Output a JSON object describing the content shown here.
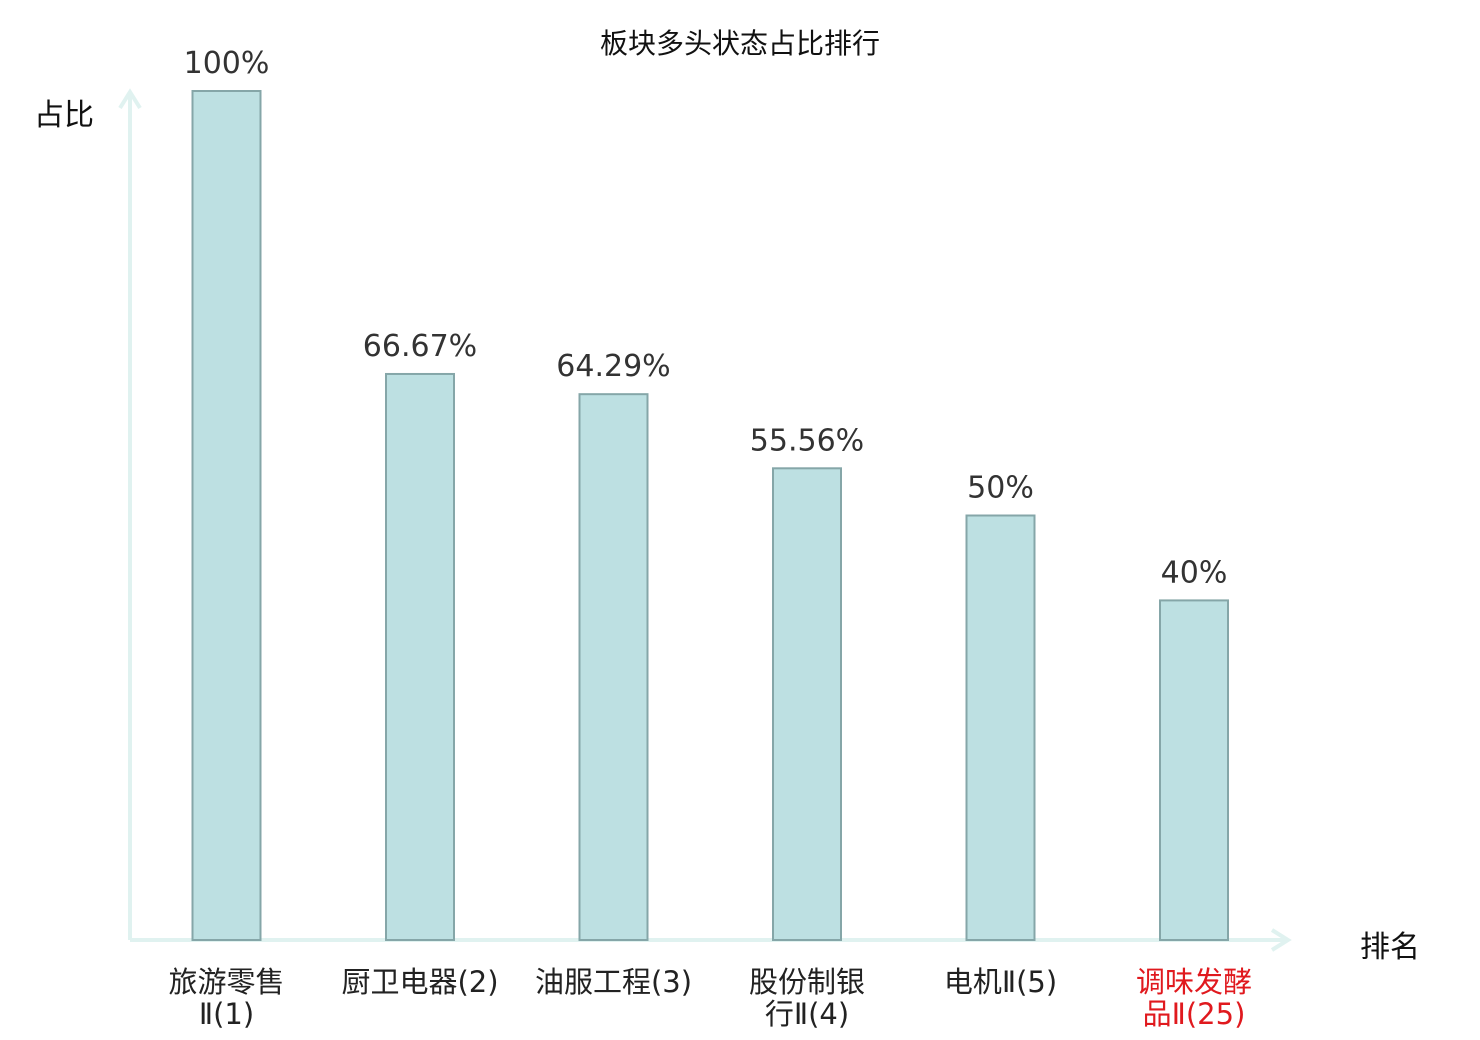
{
  "chart_data": {
    "type": "bar",
    "title": "板块多头状态占比排行",
    "ylabel": "占比",
    "xlabel": "排名",
    "ylim": [
      0,
      100
    ],
    "grid": false,
    "categories": [
      [
        "旅游零售",
        "Ⅱ(1)"
      ],
      [
        "厨卫电器(2)"
      ],
      [
        "油服工程(3)"
      ],
      [
        "股份制银",
        "行Ⅱ(4)"
      ],
      [
        "电机Ⅱ(5)"
      ],
      [
        "调味发酵",
        "品Ⅱ(25)"
      ]
    ],
    "values": [
      100,
      66.67,
      64.29,
      55.56,
      50,
      40
    ],
    "value_labels": [
      "100%",
      "66.67%",
      "64.29%",
      "55.56%",
      "50%",
      "40%"
    ],
    "highlight_index": 5,
    "colors": {
      "bar_fill": "#bde0e2",
      "bar_stroke": "#85a6a8",
      "axis": "#e0f2f0",
      "highlight_text": "#e0191e"
    }
  }
}
